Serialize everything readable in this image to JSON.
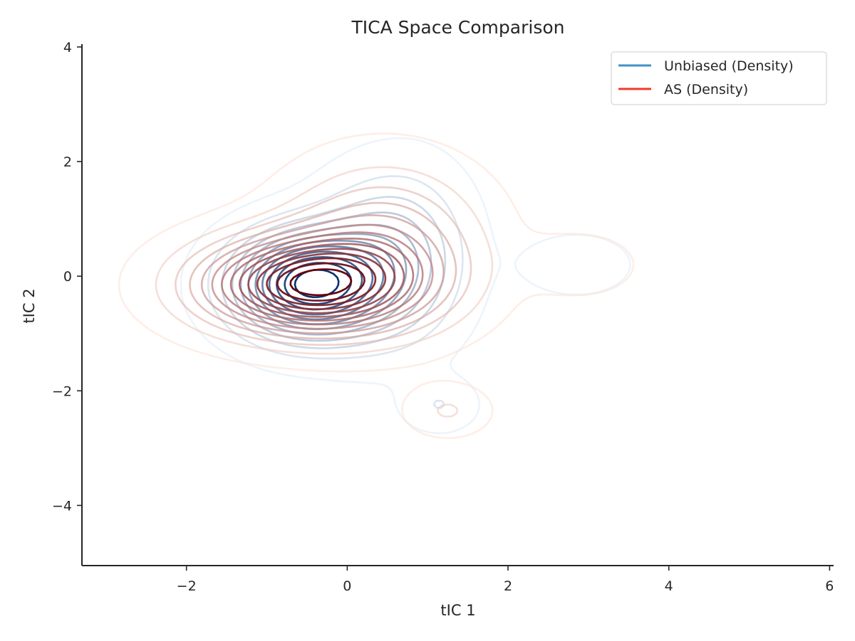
{
  "chart_data": {
    "type": "contour",
    "title": "TICA Space Comparison",
    "xlabel": "tIC 1",
    "ylabel": "tIC 2",
    "xlim": [
      -3.3,
      6.05
    ],
    "ylim": [
      -5.05,
      4.05
    ],
    "xticks": [
      -2,
      0,
      2,
      4,
      6
    ],
    "yticks": [
      -4,
      -2,
      0,
      2,
      4
    ],
    "xtick_labels": [
      "−2",
      "0",
      "2",
      "4",
      "6"
    ],
    "ytick_labels": [
      "−4",
      "−2",
      "0",
      "2",
      "4"
    ],
    "grid": false,
    "legend_position": "top-right",
    "series": [
      {
        "name": "Unbiased (Density)",
        "legend_color": "#4292c6",
        "colormap": "Blues",
        "lightest_color": "#deebf7",
        "darkest_color": "#08306b",
        "levels": 12,
        "components": [
          {
            "center": [
              -0.5,
              -0.15
            ],
            "sigma": [
              0.6,
              0.6
            ],
            "weight": 1.0
          },
          {
            "center": [
              0.35,
              0.25
            ],
            "sigma": [
              0.55,
              0.9
            ],
            "weight": 0.3
          },
          {
            "center": [
              0.85,
              0.4
            ],
            "sigma": [
              0.5,
              1.0
            ],
            "weight": 0.15
          },
          {
            "center": [
              2.85,
              0.2
            ],
            "sigma": [
              0.45,
              0.35
            ],
            "weight": 0.1
          },
          {
            "center": [
              1.15,
              -2.25
            ],
            "sigma": [
              0.3,
              0.3
            ],
            "weight": 0.12
          }
        ]
      },
      {
        "name": "AS (Density)",
        "legend_color": "#ef3b2c",
        "colormap": "Reds",
        "lightest_color": "#fee0d2",
        "darkest_color": "#67000d",
        "levels": 14,
        "components": [
          {
            "center": [
              -0.5,
              -0.15
            ],
            "sigma": [
              0.9,
              0.55
            ],
            "weight": 1.0
          },
          {
            "center": [
              0.45,
              0.55
            ],
            "sigma": [
              0.8,
              0.9
            ],
            "weight": 0.35
          },
          {
            "center": [
              2.9,
              0.2
            ],
            "sigma": [
              0.45,
              0.35
            ],
            "weight": 0.1
          },
          {
            "center": [
              1.25,
              -2.35
            ],
            "sigma": [
              0.35,
              0.3
            ],
            "weight": 0.12
          }
        ]
      }
    ]
  }
}
